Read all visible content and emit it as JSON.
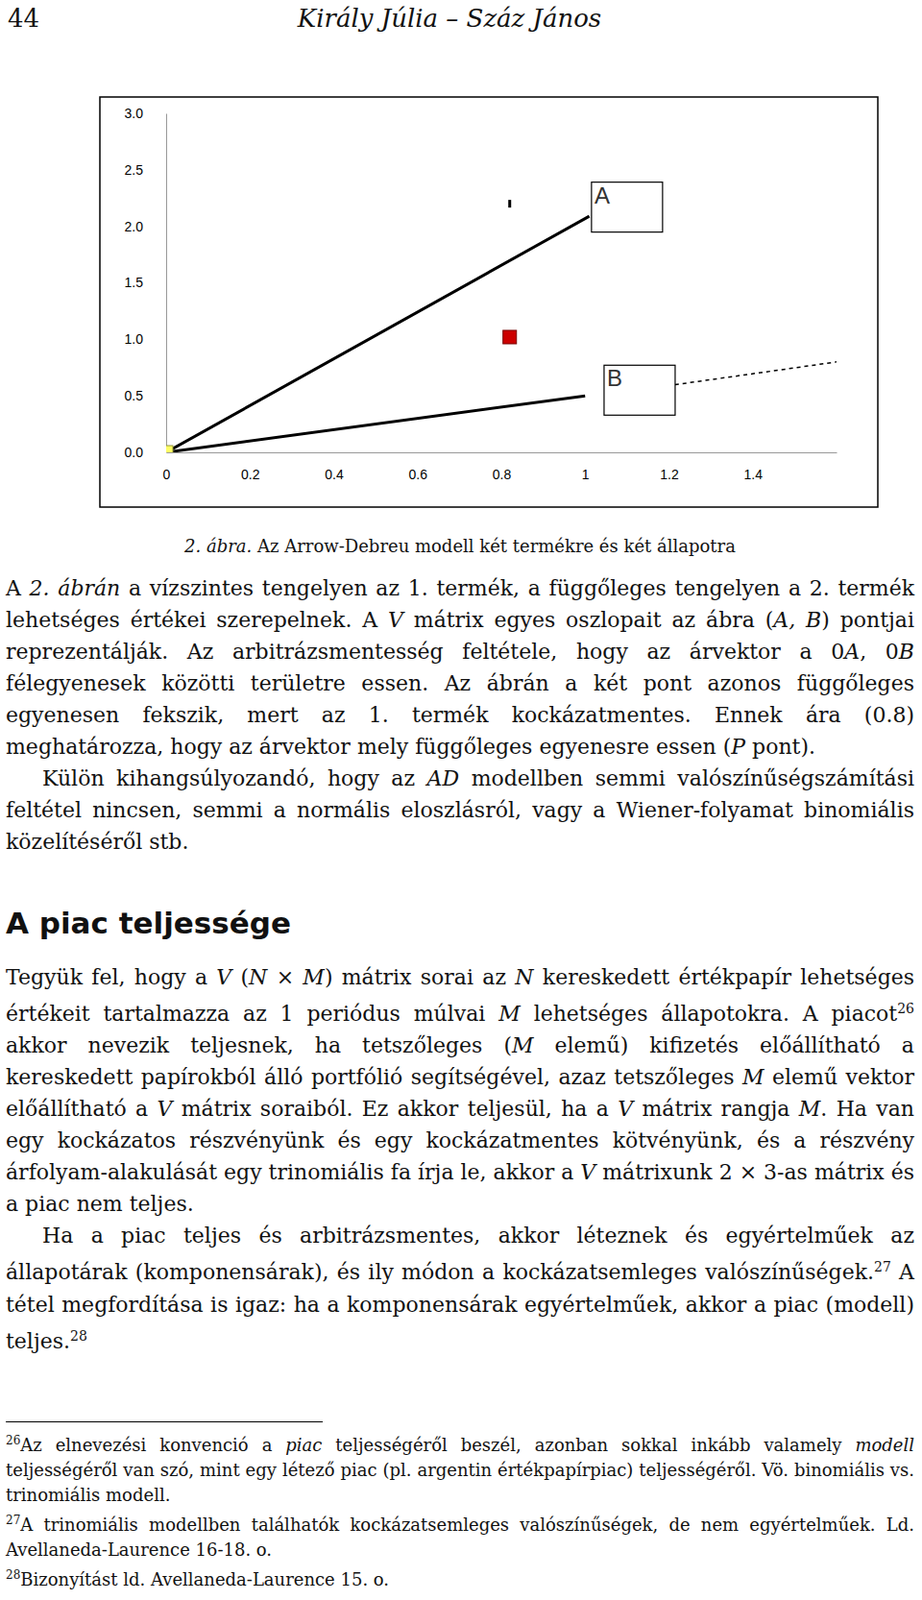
{
  "header": {
    "page_number": "44",
    "running_head": "Király Júlia – Száz János"
  },
  "chart_data": {
    "type": "line",
    "xlim": [
      0,
      1.6
    ],
    "ylim": [
      0,
      3.0
    ],
    "xticks": [
      0,
      0.2,
      0.4,
      0.6,
      0.8,
      1,
      1.2,
      1.4
    ],
    "yticks": [
      {
        "value": 0,
        "label": "0.0"
      },
      0.5,
      {
        "value": 1,
        "label": "1.0"
      },
      1.5,
      {
        "value": 2,
        "label": "2.0"
      },
      2.5,
      {
        "value": 3,
        "label": "3.0"
      }
    ],
    "series": [
      {
        "type": "line",
        "color": "#000000",
        "line_style": "solid",
        "x": [
          0,
          1.01
        ],
        "values": [
          0,
          2.09
        ]
      },
      {
        "type": "line",
        "color": "#000000",
        "line_style": "solid",
        "x": [
          0,
          1.0
        ],
        "values": [
          0,
          0.5
        ]
      },
      {
        "type": "line",
        "color": "#000000",
        "line_style": "dashed",
        "x": [
          1.16,
          1.6
        ],
        "values": [
          0.57,
          0.8
        ]
      },
      {
        "type": "scatter",
        "color": "#cc0000",
        "marker": "square",
        "x": [
          0.82
        ],
        "values": [
          1.02
        ]
      },
      {
        "type": "scatter",
        "color": "#ffff66",
        "marker": "square",
        "x": [
          0
        ],
        "values": [
          0
        ]
      },
      {
        "type": "scatter",
        "color": "#000000",
        "marker": "dot",
        "x": [
          0.82
        ],
        "values": [
          2.2
        ]
      }
    ],
    "annotations": [
      {
        "text": "A",
        "x": 1.1,
        "y": 2.17
      },
      {
        "text": "B",
        "x": 1.13,
        "y": 0.55
      }
    ]
  },
  "caption": {
    "label": "2. ábra.",
    "text": "Az Arrow-Debreu modell két termékre és két állapotra"
  },
  "sections": [
    {
      "paragraphs": [
        {
          "runs": [
            "A ",
            {
              "em": "2. ábrán"
            },
            " a vízszintes tengelyen az 1. termék, a függőleges tengelyen a 2. termék lehetséges értékei szerepelnek. A ",
            {
              "em": "V"
            },
            " mátrix egyes oszlopait az ábra (",
            {
              "em": "A, B"
            },
            ") pontjai reprezentálják. Az arbitrázsmentesség feltétele, hogy az árvektor a 0",
            {
              "em": "A"
            },
            ", 0",
            {
              "em": "B"
            },
            " félegyenesek közötti területre essen. Az ábrán a két pont azonos függőleges egyenesen fekszik, mert az 1. termék kockázatmentes. Ennek ára (0.8) meghatározza, hogy az árvektor mely függőleges egyenesre essen (",
            {
              "em": "P"
            },
            " pont)."
          ]
        },
        {
          "runs": [
            "Külön kihangsúlyozandó, hogy az ",
            {
              "em": "AD"
            },
            " modellben semmi valószínűségszámítási feltétel nincsen, semmi a normális eloszlásról, vagy a Wiener-folyamat binomiális közelítéséről stb."
          ]
        }
      ]
    },
    {
      "title": "A piac teljessége",
      "paragraphs": [
        {
          "runs": [
            "Tegyük fel, hogy a ",
            {
              "em": "V"
            },
            " (",
            {
              "em": "N"
            },
            " × ",
            {
              "em": "M"
            },
            ") mátrix sorai az ",
            {
              "em": "N"
            },
            " kereskedett értékpapír lehetséges értékeit tartalmazza az 1 periódus múlvai ",
            {
              "em": "M"
            },
            " lehetséges állapotokra. A piacot",
            {
              "sup": "26"
            },
            " akkor nevezik teljesnek, ha tetszőleges (",
            {
              "em": "M"
            },
            " elemű) kifizetés előállítható a kereskedett papírokból álló portfólió segítségével, azaz tetszőleges ",
            {
              "em": "M"
            },
            " elemű vektor előállítható a ",
            {
              "em": "V"
            },
            " mátrix soraiból. Ez akkor teljesül, ha a ",
            {
              "em": "V"
            },
            " mátrix rangja ",
            {
              "em": "M"
            },
            ". Ha van egy kockázatos részvényünk és egy kockázatmentes kötvényünk, és a részvény árfolyam-alakulását egy trinomiális fa írja le, akkor a ",
            {
              "em": "V"
            },
            " mátrixunk 2 × 3-as mátrix és a piac nem teljes."
          ]
        },
        {
          "runs": [
            "Ha a piac teljes és arbitrázsmentes, akkor léteznek és egyértelműek az állapotárak (komponensárak), és ily módon a kockázatsemleges valószínűségek.",
            {
              "sup": "27"
            },
            " A tétel megfordítása is igaz: ha a komponensárak egyértelműek, akkor a piac (modell) teljes.",
            {
              "sup": "28"
            }
          ]
        }
      ]
    }
  ],
  "footnotes": [
    {
      "mark": "26",
      "runs": [
        "Az elnevezési konvenció a ",
        {
          "em": "piac"
        },
        " teljességéről beszél, azonban sokkal inkább valamely ",
        {
          "em": "modell"
        },
        " teljességéről van szó, mint egy létező piac (pl. argentin értékpapírpiac) teljességéről. Vö. binomiális vs. trinomiális modell."
      ]
    },
    {
      "mark": "27",
      "runs": [
        "A trinomiális modellben találhatók kockázatsemleges valószínűségek, de nem egyértelműek. Ld. Avellaneda-Laurence 16-18. o."
      ]
    },
    {
      "mark": "28",
      "runs": [
        "Bizonyítást ld. Avellaneda-Laurence 15. o."
      ]
    }
  ]
}
